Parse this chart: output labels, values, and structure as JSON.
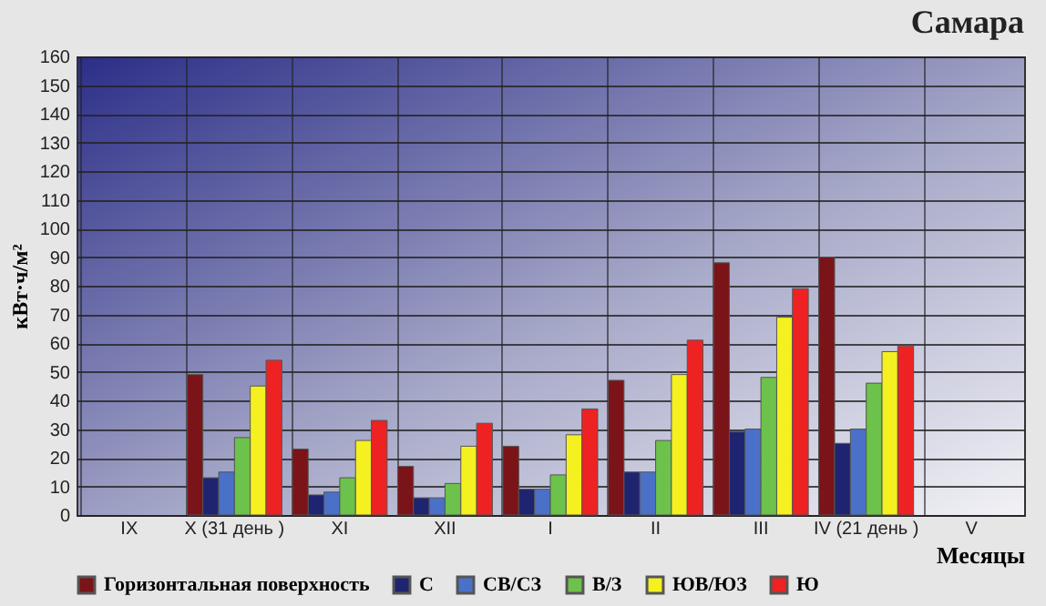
{
  "chart_data": {
    "type": "bar",
    "title": "Самара",
    "xlabel": "Месяцы",
    "ylabel": "кВт·ч/м²",
    "categories": [
      "IX",
      "X (31 день )",
      "XI",
      "XII",
      "I",
      "II",
      "III",
      "IV (21 день )",
      "V"
    ],
    "series": [
      {
        "name": "Горизонтальная поверхность",
        "color": "#7b1418",
        "values": [
          null,
          49,
          23,
          17,
          24,
          47,
          88,
          90,
          null
        ]
      },
      {
        "name": "С",
        "color": "#1f2470",
        "values": [
          null,
          13,
          7,
          6,
          9,
          15,
          29,
          25,
          null
        ]
      },
      {
        "name": "СВ/СЗ",
        "color": "#4a70c8",
        "values": [
          null,
          15,
          8,
          6,
          9,
          15,
          30,
          30,
          null
        ]
      },
      {
        "name": "В/З",
        "color": "#6cc24a",
        "values": [
          null,
          27,
          13,
          11,
          14,
          26,
          48,
          46,
          null
        ]
      },
      {
        "name": "ЮВ/ЮЗ",
        "color": "#f5f020",
        "values": [
          null,
          45,
          26,
          24,
          28,
          49,
          69,
          57,
          null
        ]
      },
      {
        "name": "Ю",
        "color": "#ee2222",
        "values": [
          null,
          54,
          33,
          32,
          37,
          61,
          79,
          59,
          null
        ]
      }
    ],
    "ylim": [
      0,
      160
    ],
    "yticks": [
      0,
      10,
      20,
      30,
      40,
      50,
      60,
      70,
      80,
      90,
      100,
      110,
      120,
      130,
      140,
      150,
      160
    ],
    "grid": true,
    "legend": "bottom"
  }
}
